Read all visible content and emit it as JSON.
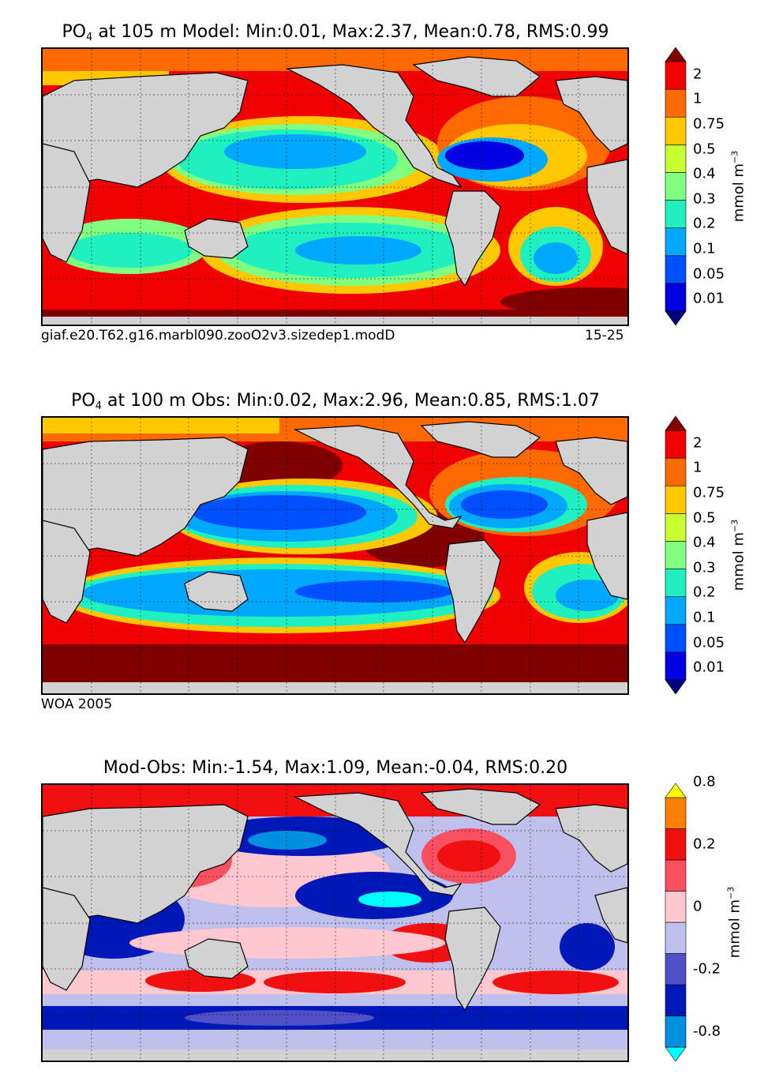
{
  "panels": [
    {
      "title_prefix": "PO",
      "title_sub": "4",
      "title_rest": " at 105 m Model: Min:0.01, Max:2.37, Mean:0.78, RMS:0.99",
      "note_left": "giaf.e20.T62.g16.marbl090.zooO2v3.sizedep1.modD",
      "note_right": "15-25",
      "colorbar": {
        "ticks": [
          "0.01",
          "0.05",
          "0.1",
          "0.2",
          "0.3",
          "0.4",
          "0.5",
          "0.75",
          "1",
          "2"
        ],
        "colors": [
          "#00007f",
          "#0000e0",
          "#0050ff",
          "#00a8ff",
          "#20f0c0",
          "#80ff80",
          "#c8ff30",
          "#ffc800",
          "#ff6a00",
          "#f00000",
          "#800000"
        ],
        "unit": "mmol m",
        "unit_sup": "−3"
      }
    },
    {
      "title_prefix": "PO",
      "title_sub": "4",
      "title_rest": " at 100 m Obs: Min:0.02, Max:2.96, Mean:0.85, RMS:1.07",
      "note_left": "WOA 2005",
      "note_right": "",
      "colorbar": {
        "ticks": [
          "0.01",
          "0.05",
          "0.1",
          "0.2",
          "0.3",
          "0.4",
          "0.5",
          "0.75",
          "1",
          "2"
        ],
        "colors": [
          "#00007f",
          "#0000e0",
          "#0050ff",
          "#00a8ff",
          "#20f0c0",
          "#80ff80",
          "#c8ff30",
          "#ffc800",
          "#ff6a00",
          "#f00000",
          "#800000"
        ],
        "unit": "mmol m",
        "unit_sup": "−3"
      }
    },
    {
      "title_prefix": "",
      "title_sub": "",
      "title_rest": "Mod-Obs: Min:-1.54, Max:1.09, Mean:-0.04, RMS:0.20",
      "note_left": "",
      "note_right": "",
      "colorbar": {
        "ticks": [
          "-0.8",
          "-0.2",
          "0",
          "0.2",
          "0.8"
        ],
        "colors": [
          "#00ffff",
          "#0090e0",
          "#0018b8",
          "#5050c8",
          "#c0c0ec",
          "#ffc8d0",
          "#f85060",
          "#f01010",
          "#ff8000",
          "#ffff00"
        ],
        "unit": "mmol m",
        "unit_sup": "−3"
      }
    }
  ]
}
